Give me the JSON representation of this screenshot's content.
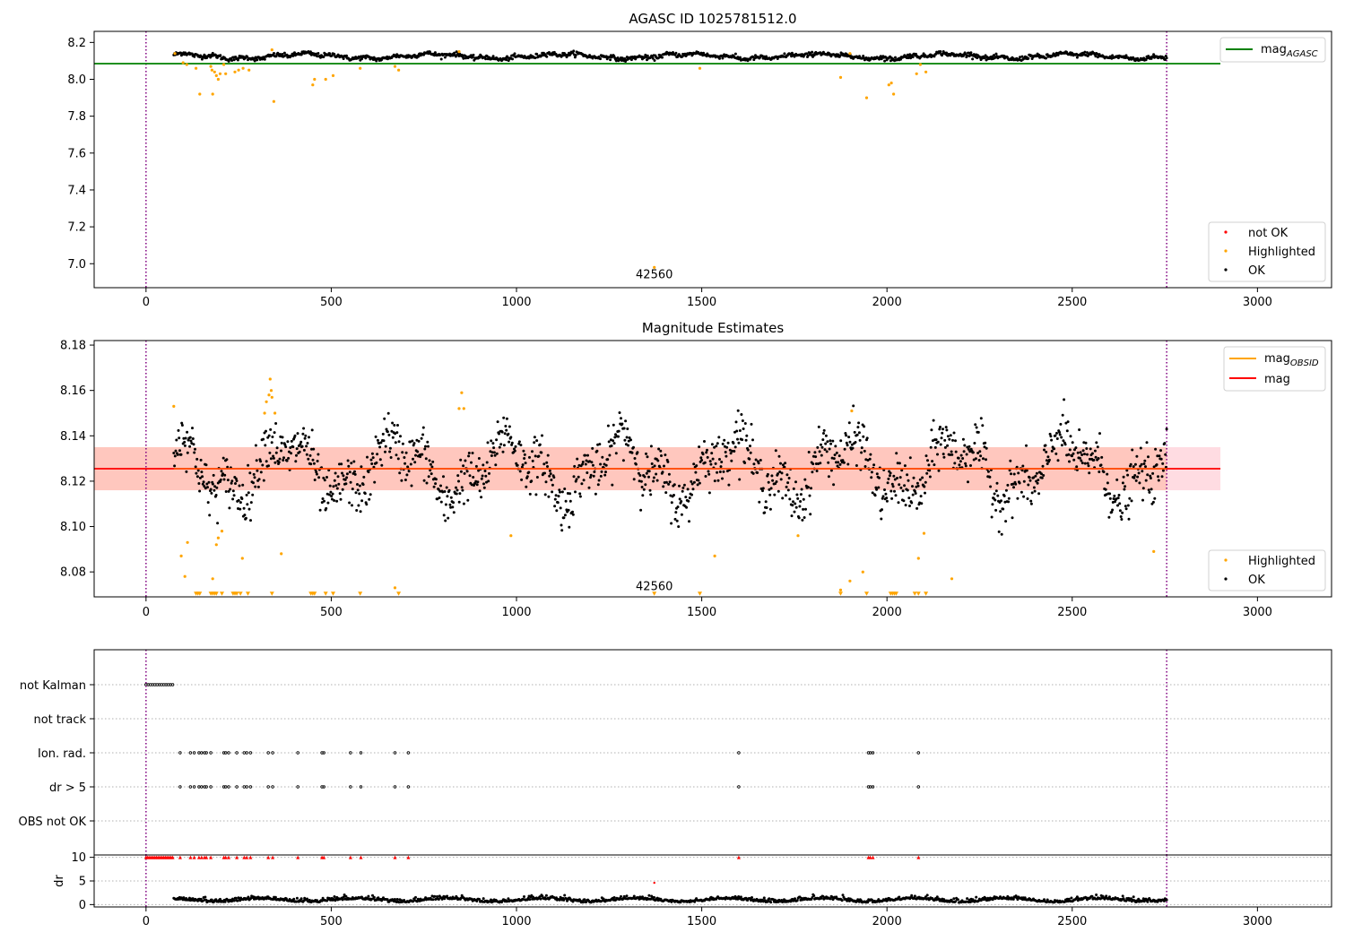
{
  "chart_data": [
    {
      "type": "scatter",
      "title": "AGASC ID 1025781512.0",
      "xlim": [
        -140,
        3200
      ],
      "ylim": [
        6.87,
        8.26
      ],
      "xticks": [
        0,
        500,
        1000,
        1500,
        2000,
        2500,
        3000
      ],
      "yticks": [
        7.0,
        7.2,
        7.4,
        7.6,
        7.8,
        8.0,
        8.2
      ],
      "yticklabels": [
        "7.0",
        "7.2",
        "7.4",
        "7.6",
        "7.8",
        "8.0",
        "8.2"
      ],
      "vlines": [
        0,
        2755
      ],
      "hline": {
        "y": 8.085,
        "x0": -140,
        "x1": 2900,
        "color": "#008000"
      },
      "annotation": {
        "text": "42560",
        "x": 1372,
        "y": 6.94
      },
      "series_ok": {
        "name": "OK",
        "color": "#000000",
        "base": 8.125,
        "x0": 75,
        "x1": 2755,
        "n": 1300
      },
      "highlighted": {
        "name": "Highlighted",
        "color": "#ffa500",
        "points": [
          [
            78,
            8.14
          ],
          [
            100,
            8.09
          ],
          [
            110,
            8.08
          ],
          [
            135,
            8.06
          ],
          [
            145,
            7.92
          ],
          [
            175,
            8.07
          ],
          [
            178,
            8.05
          ],
          [
            180,
            7.92
          ],
          [
            185,
            8.04
          ],
          [
            190,
            8.02
          ],
          [
            195,
            8.0
          ],
          [
            200,
            8.03
          ],
          [
            210,
            8.08
          ],
          [
            215,
            8.03
          ],
          [
            240,
            8.04
          ],
          [
            250,
            8.05
          ],
          [
            262,
            8.06
          ],
          [
            278,
            8.05
          ],
          [
            340,
            8.16
          ],
          [
            345,
            7.88
          ],
          [
            450,
            7.97
          ],
          [
            455,
            8.0
          ],
          [
            485,
            8.0
          ],
          [
            505,
            8.02
          ],
          [
            578,
            8.06
          ],
          [
            672,
            8.07
          ],
          [
            682,
            8.05
          ],
          [
            845,
            8.15
          ],
          [
            1372,
            6.98
          ],
          [
            1495,
            8.06
          ],
          [
            1875,
            8.01
          ],
          [
            1900,
            8.14
          ],
          [
            1945,
            7.9
          ],
          [
            2005,
            7.97
          ],
          [
            2012,
            7.98
          ],
          [
            2018,
            7.92
          ],
          [
            2080,
            8.03
          ],
          [
            2090,
            8.08
          ],
          [
            2105,
            8.04
          ]
        ]
      },
      "legend_top": {
        "label": "mag",
        "sub": "AGASC"
      },
      "legend_bottom": [
        "not OK",
        "Highlighted",
        "OK"
      ],
      "legend_colors": [
        "#ff0000",
        "#ffa500",
        "#000000"
      ]
    },
    {
      "type": "scatter",
      "title": "Magnitude Estimates",
      "xlim": [
        -140,
        3200
      ],
      "ylim": [
        8.069,
        8.182
      ],
      "xticks": [
        0,
        500,
        1000,
        1500,
        2000,
        2500,
        3000
      ],
      "yticks": [
        8.08,
        8.1,
        8.12,
        8.14,
        8.16,
        8.18
      ],
      "yticklabels": [
        "8.08",
        "8.10",
        "8.12",
        "8.14",
        "8.16",
        "8.18"
      ],
      "vlines": [
        0,
        2755
      ],
      "mag_line": {
        "y": 8.1255,
        "x0": -140,
        "x1": 2900,
        "color": "#ff0000"
      },
      "band_outer": {
        "y0": 8.116,
        "y1": 8.135,
        "x0": -140,
        "x1": 2900,
        "color": "#ffc0cb"
      },
      "band_inner": {
        "y0": 8.116,
        "y1": 8.135,
        "x0": -140,
        "x1": 2755,
        "color": "#ffa07a"
      },
      "obsid_line": {
        "y": 8.1255,
        "x0": 75,
        "x1": 2755,
        "color": "#ffa500"
      },
      "annotation": {
        "text": "42560",
        "x": 1372,
        "y": 8.0735
      },
      "series_ok": {
        "name": "OK",
        "color": "#000000",
        "base": 8.1255,
        "x0": 75,
        "x1": 2755,
        "n": 1500
      },
      "highlighted": {
        "name": "Highlighted",
        "color": "#ffa500",
        "points": [
          [
            75,
            8.153
          ],
          [
            95,
            8.087
          ],
          [
            105,
            8.078
          ],
          [
            112,
            8.093
          ],
          [
            180,
            8.077
          ],
          [
            190,
            8.092
          ],
          [
            195,
            8.095
          ],
          [
            205,
            8.098
          ],
          [
            260,
            8.086
          ],
          [
            320,
            8.15
          ],
          [
            325,
            8.155
          ],
          [
            332,
            8.158
          ],
          [
            335,
            8.165
          ],
          [
            338,
            8.16
          ],
          [
            340,
            8.157
          ],
          [
            348,
            8.15
          ],
          [
            365,
            8.088
          ],
          [
            672,
            8.073
          ],
          [
            845,
            8.152
          ],
          [
            852,
            8.159
          ],
          [
            858,
            8.152
          ],
          [
            985,
            8.096
          ],
          [
            1535,
            8.087
          ],
          [
            1760,
            8.096
          ],
          [
            1875,
            8.072
          ],
          [
            1900,
            8.076
          ],
          [
            1905,
            8.151
          ],
          [
            1935,
            8.08
          ],
          [
            2085,
            8.086
          ],
          [
            2100,
            8.097
          ],
          [
            2175,
            8.077
          ],
          [
            2720,
            8.089
          ]
        ]
      },
      "clipped": {
        "color": "#ffa500",
        "y": 8.0705,
        "x": [
          135,
          140,
          145,
          175,
          180,
          185,
          190,
          205,
          235,
          240,
          245,
          255,
          275,
          340,
          445,
          450,
          455,
          485,
          505,
          578,
          682,
          1372,
          1495,
          1875,
          1945,
          2010,
          2015,
          2020,
          2025,
          2075,
          2085,
          2105
        ]
      },
      "legend_top": [
        {
          "label": "mag",
          "sub": "OBSID"
        },
        {
          "label": "mag",
          "sub": ""
        }
      ],
      "legend_bottom": [
        "Highlighted",
        "OK"
      ],
      "legend_colors": [
        "#ffa500",
        "#000000"
      ]
    },
    {
      "type": "scatter",
      "xlim": [
        -140,
        3200
      ],
      "xticks": [
        0,
        500,
        1000,
        1500,
        2000,
        2500,
        3000
      ],
      "vlines": [
        0,
        2755
      ],
      "flags": [
        {
          "label": "not Kalman",
          "x": [
            0,
            6,
            12,
            18,
            24,
            30,
            36,
            42,
            48,
            54,
            60,
            66,
            72
          ]
        },
        {
          "label": "not track",
          "x": []
        },
        {
          "label": "Ion. rad.",
          "x": [
            92,
            120,
            130,
            143,
            150,
            158,
            163,
            175,
            210,
            215,
            223,
            245,
            265,
            272,
            282,
            330,
            342,
            410,
            475,
            480,
            552,
            580,
            672,
            708,
            1600,
            1950,
            1955,
            1962,
            2085
          ]
        },
        {
          "label": "dr > 5",
          "x": [
            92,
            120,
            130,
            143,
            150,
            158,
            163,
            175,
            210,
            215,
            223,
            245,
            265,
            272,
            282,
            330,
            342,
            410,
            475,
            480,
            552,
            580,
            672,
            708,
            1600,
            1950,
            1955,
            1962,
            2085
          ]
        },
        {
          "label": "OBS not OK",
          "x": []
        }
      ],
      "dr": {
        "ylabel": "dr",
        "yticks": [
          0,
          5,
          10
        ],
        "yticklabels": [
          "0",
          "5",
          "10"
        ],
        "ylim": [
          -0.5,
          10.5
        ],
        "clip_value": 10,
        "clip_color": "#ff0000",
        "clip_x": [
          0,
          4,
          8,
          12,
          16,
          20,
          24,
          28,
          32,
          36,
          40,
          44,
          48,
          52,
          56,
          60,
          64,
          68,
          72,
          92,
          120,
          130,
          143,
          150,
          158,
          163,
          175,
          210,
          215,
          223,
          245,
          265,
          272,
          282,
          330,
          342,
          410,
          475,
          480,
          552,
          580,
          672,
          708,
          1600,
          1950,
          1955,
          1962,
          2085
        ],
        "red_point": {
          "x": 1372,
          "y": 4.6
        },
        "series": {
          "color": "#000000",
          "base": 0.8,
          "x0": 75,
          "x1": 2755,
          "n": 1200
        }
      }
    }
  ]
}
